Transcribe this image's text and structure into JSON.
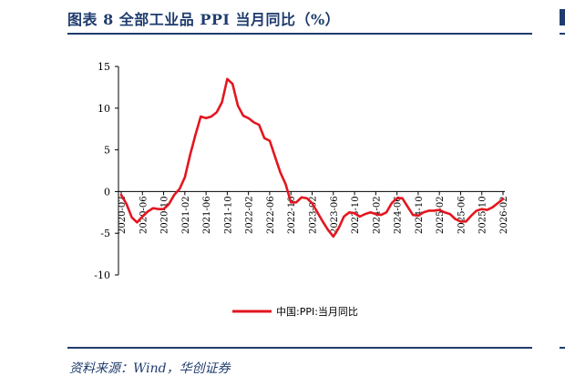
{
  "header": {
    "title": "图表 8   全部工业品 PPI 当月同比（%）"
  },
  "source": "资料来源：Wind，华创证券",
  "colors": {
    "accent": "#1f3c6e",
    "series": "#e3161f"
  },
  "chart_data": {
    "type": "line",
    "ylim": [
      -10,
      15
    ],
    "yticks": [
      15,
      10,
      5,
      0,
      -5,
      -10
    ],
    "grid": false,
    "legend_position": "bottom-center",
    "xlabels": [
      "2020-02",
      "2020-06",
      "2020-10",
      "2021-02",
      "2021-06",
      "2021-10",
      "2022-02",
      "2022-06",
      "2022-10",
      "2023-02",
      "2023-06",
      "2023-10",
      "2024-02",
      "2024-06",
      "2024-10",
      "2025-02",
      "2025-06",
      "2025-10",
      "2026-02"
    ],
    "x": [
      "2020-02",
      "2020-03",
      "2020-04",
      "2020-05",
      "2020-06",
      "2020-07",
      "2020-08",
      "2020-09",
      "2020-10",
      "2020-11",
      "2020-12",
      "2021-01",
      "2021-02",
      "2021-03",
      "2021-04",
      "2021-05",
      "2021-06",
      "2021-07",
      "2021-08",
      "2021-09",
      "2021-10",
      "2021-11",
      "2021-12",
      "2022-01",
      "2022-02",
      "2022-03",
      "2022-04",
      "2022-05",
      "2022-06",
      "2022-07",
      "2022-08",
      "2022-09",
      "2022-10",
      "2022-11",
      "2022-12",
      "2023-01",
      "2023-02",
      "2023-03",
      "2023-04",
      "2023-05",
      "2023-06",
      "2023-07",
      "2023-08",
      "2023-09",
      "2023-10",
      "2023-11",
      "2023-12",
      "2024-01",
      "2024-02",
      "2024-03",
      "2024-04",
      "2024-05",
      "2024-06",
      "2024-07",
      "2024-08",
      "2024-09",
      "2024-10",
      "2024-11",
      "2024-12",
      "2025-01",
      "2025-02",
      "2025-03",
      "2025-04",
      "2025-05",
      "2025-06",
      "2025-07",
      "2025-08",
      "2025-09",
      "2025-10",
      "2025-11",
      "2025-12",
      "2026-01",
      "2026-02"
    ],
    "series": [
      {
        "name": "中国:PPI:当月同比",
        "values": [
          -0.4,
          -1.5,
          -3.1,
          -3.7,
          -3.0,
          -2.4,
          -2.0,
          -2.1,
          -2.1,
          -1.5,
          -0.4,
          0.3,
          1.7,
          4.4,
          6.8,
          9.0,
          8.8,
          9.0,
          9.5,
          10.7,
          13.5,
          12.9,
          10.3,
          9.1,
          8.8,
          8.3,
          8.0,
          6.4,
          6.1,
          4.2,
          2.3,
          0.9,
          -1.3,
          -1.3,
          -0.7,
          -0.8,
          -1.4,
          -2.5,
          -3.6,
          -4.6,
          -5.4,
          -4.4,
          -3.0,
          -2.5,
          -2.6,
          -3.0,
          -2.7,
          -2.5,
          -2.7,
          -2.8,
          -2.5,
          -1.4,
          -0.8,
          -0.8,
          -1.8,
          -2.8,
          -2.9,
          -2.5,
          -2.3,
          -2.3,
          -2.2,
          -2.5,
          -2.7,
          -3.3,
          -3.6,
          -3.6,
          -2.9,
          -2.3,
          -2.1,
          -2.2,
          -1.9,
          -1.4,
          -0.9
        ]
      }
    ]
  }
}
